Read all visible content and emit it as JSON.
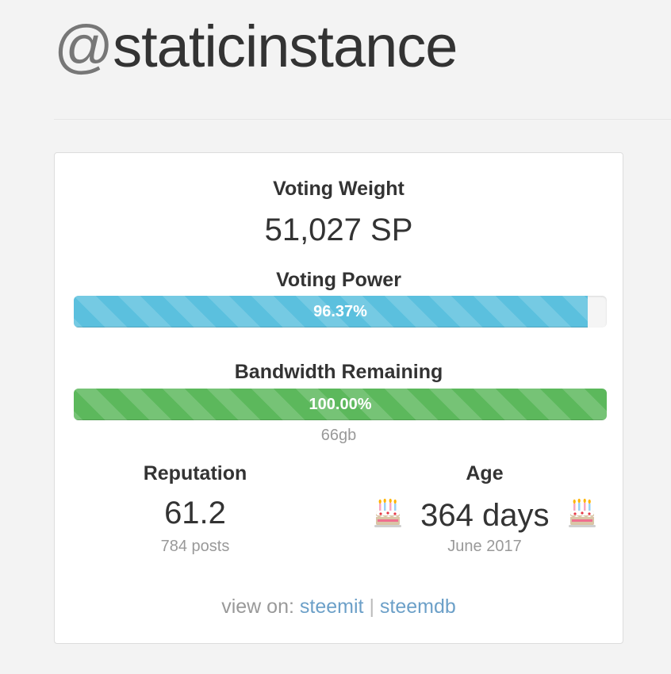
{
  "profile": {
    "at_symbol": "@",
    "username": "staticinstance"
  },
  "voting_weight": {
    "label": "Voting Weight",
    "value": "51,027 SP"
  },
  "voting_power": {
    "label": "Voting Power",
    "percent_text": "96.37%",
    "percent": 96.37,
    "color": "#5bc0de"
  },
  "bandwidth": {
    "label": "Bandwidth Remaining",
    "percent_text": "100.00%",
    "percent": 100.0,
    "color": "#5cb85c",
    "size": "66gb"
  },
  "reputation": {
    "label": "Reputation",
    "value": "61.2",
    "posts": "784 posts"
  },
  "age": {
    "label": "Age",
    "value": "364 days",
    "since": "June 2017",
    "icon": "birthday-cake-icon"
  },
  "links": {
    "prefix": "view on: ",
    "steemit": "steemit",
    "separator": "|",
    "steemdb": "steemdb",
    "color": "#6ca0c8"
  }
}
